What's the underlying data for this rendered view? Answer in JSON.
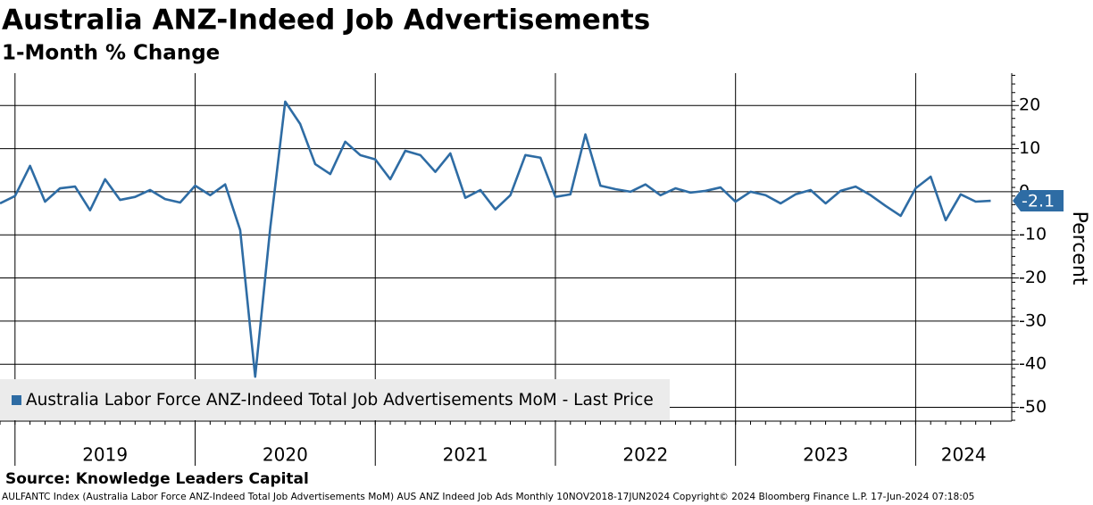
{
  "chart_data": {
    "type": "line",
    "title": "Australia ANZ-Indeed Job Advertisements",
    "subtitle": "1-Month % Change",
    "y_label": "Percent",
    "source": "Source: Knowledge Leaders Capital",
    "footnote": "AULFANTC Index (Australia Labor Force ANZ-Indeed Total Job Advertisements MoM) AUS ANZ Indeed Job Ads  Monthly 10NOV2018-17JUN2024 Copyright© 2024 Bloomberg Finance L.P. 17-Jun-2024 07:18:05",
    "categories": [
      null,
      "2019",
      null,
      null,
      null,
      null,
      null,
      null,
      null,
      null,
      null,
      null,
      null,
      "2020",
      null,
      null,
      null,
      null,
      null,
      null,
      null,
      null,
      null,
      null,
      null,
      "2021",
      null,
      null,
      null,
      null,
      null,
      null,
      null,
      null,
      null,
      null,
      null,
      "2022",
      null,
      null,
      null,
      null,
      null,
      null,
      null,
      null,
      null,
      null,
      null,
      "2023",
      null,
      null,
      null,
      null,
      null,
      null,
      null,
      null,
      null,
      null,
      null,
      "2024",
      null,
      null,
      null,
      null,
      null
    ],
    "series": [
      {
        "name": "Australia Labor Force ANZ-Indeed Total Job Advertisements MoM - Last Price",
        "color": "#2e6ca4",
        "values": [
          -2.7,
          -1.0,
          6.0,
          -2.3,
          0.8,
          1.2,
          -4.3,
          2.9,
          -1.9,
          -1.2,
          0.4,
          -1.7,
          -2.5,
          1.4,
          -0.8,
          1.7,
          -8.9,
          -42.9,
          -8.5,
          20.9,
          15.7,
          6.4,
          4.1,
          11.6,
          8.5,
          7.5,
          2.9,
          9.5,
          8.5,
          4.6,
          8.9,
          -1.4,
          0.4,
          -4.1,
          -0.8,
          8.5,
          7.9,
          -1.2,
          -0.6,
          13.3,
          1.4,
          0.6,
          0.0,
          1.7,
          -0.8,
          0.8,
          -0.2,
          0.2,
          1.0,
          -2.3,
          0.0,
          -0.8,
          -2.7,
          -0.6,
          0.4,
          -2.7,
          0.2,
          1.2,
          -0.8,
          -3.3,
          -5.6,
          0.8,
          3.5,
          -6.6,
          -0.6,
          -2.3,
          -2.1
        ]
      }
    ],
    "ylim": [
      -53.2,
      27.5
    ],
    "yticks": [
      20,
      10,
      0,
      -10,
      -20,
      -30,
      -40,
      -50
    ],
    "grid": true
  }
}
